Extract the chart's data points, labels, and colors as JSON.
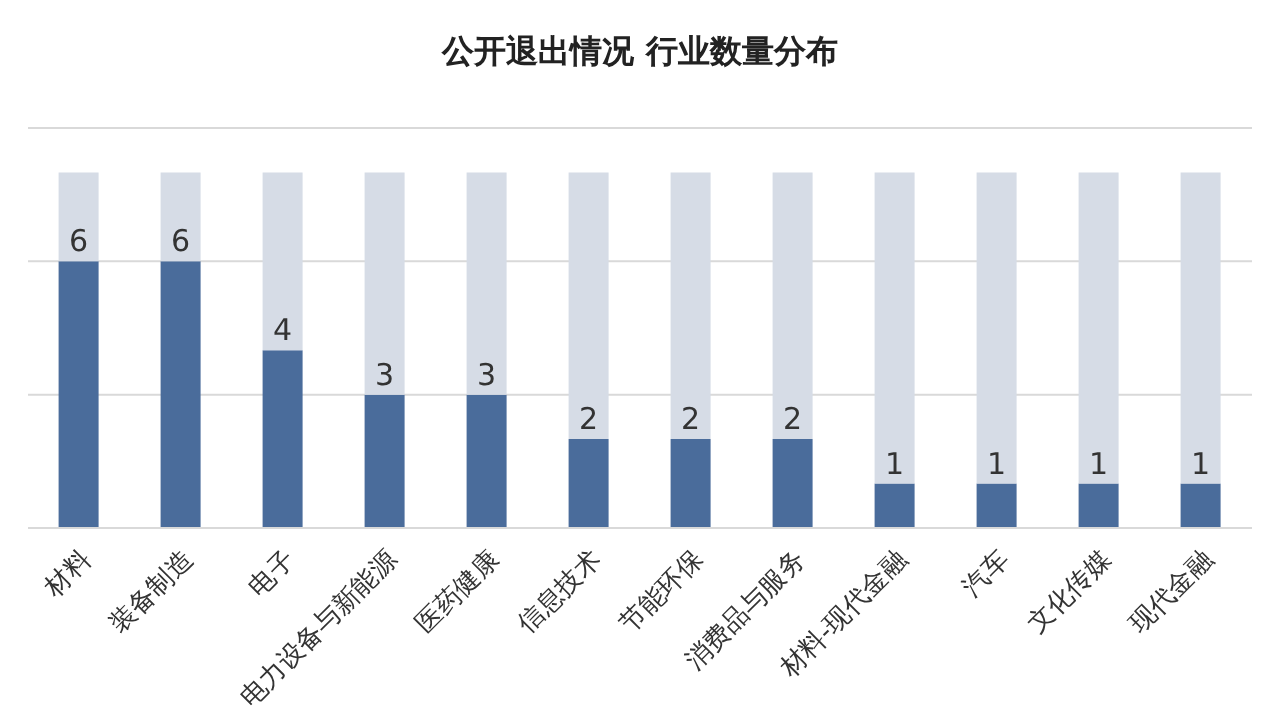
{
  "chart_data": {
    "type": "bar",
    "title": "公开退出情况 行业数量分布",
    "categories": [
      "材料",
      "装备制造",
      "电子",
      "电力设备与新能源",
      "医药健康",
      "信息技术",
      "节能环保",
      "消费品与服务",
      "材料-现代金融",
      "汽车",
      "文化传媒",
      "现代金融"
    ],
    "series": [
      {
        "color": "#4a6c9b",
        "values": [
          6,
          6,
          4,
          3,
          3,
          2,
          2,
          2,
          1,
          1,
          1,
          1
        ],
        "value_labels": [
          "6",
          "6",
          "4",
          "3",
          "3",
          "2",
          "2",
          "2",
          "1",
          "1",
          "1",
          "1"
        ]
      },
      {
        "color": "#d6dce6",
        "values": [
          2,
          2,
          4,
          5,
          5,
          6,
          6,
          6,
          7,
          7,
          7,
          7
        ]
      }
    ],
    "stacked": true,
    "ylim": [
      0,
      9
    ],
    "yticks": [
      {
        "value": 0,
        "label": null
      },
      {
        "value": 3,
        "label": null
      },
      {
        "value": 6,
        "label": null
      },
      {
        "value": 9,
        "label": null
      }
    ],
    "grid": "y",
    "tick_labels": "x"
  }
}
